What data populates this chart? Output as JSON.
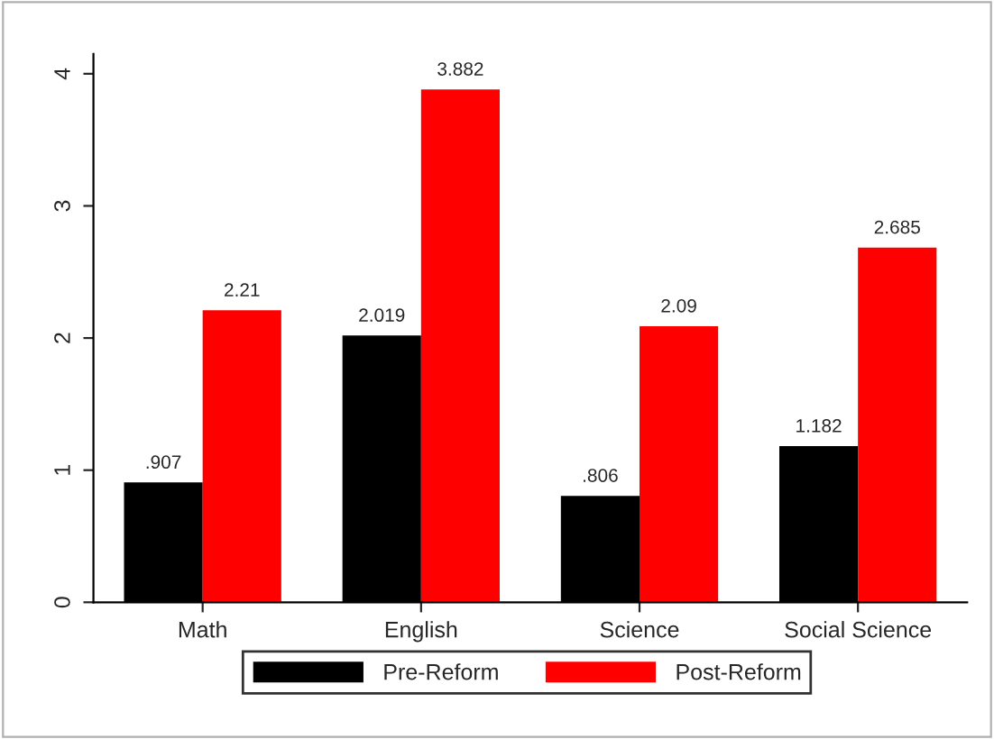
{
  "chart_data": {
    "type": "bar",
    "categories": [
      "Math",
      "English",
      "Science",
      "Social Science"
    ],
    "series": [
      {
        "name": "Pre-Reform",
        "color": "#000000",
        "values": [
          0.907,
          2.019,
          0.806,
          1.182
        ],
        "value_labels": [
          ".907",
          "2.019",
          ".806",
          "1.182"
        ]
      },
      {
        "name": "Post-Reform",
        "color": "#ff0000",
        "values": [
          2.21,
          3.882,
          2.09,
          2.685
        ],
        "value_labels": [
          "2.21",
          "3.882",
          "2.09",
          "2.685"
        ]
      }
    ],
    "ylim": [
      0,
      4.15
    ],
    "yticks": [
      0,
      1,
      2,
      3,
      4
    ],
    "grid": false,
    "legend": "bottom"
  }
}
